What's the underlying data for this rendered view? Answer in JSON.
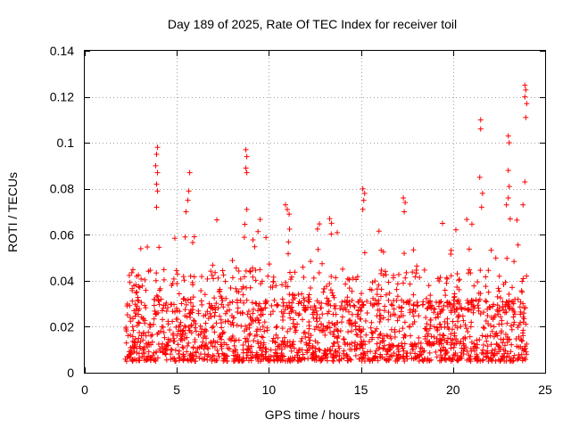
{
  "chart_data": {
    "type": "scatter",
    "title": "Day 189 of 2025, Rate Of TEC Index for receiver toil",
    "xlabel": "GPS time / hours",
    "ylabel": "ROTI / TECUs",
    "xlim": [
      0,
      25
    ],
    "ylim": [
      0,
      0.14
    ],
    "x_ticks": [
      0,
      5,
      10,
      15,
      20,
      25
    ],
    "x_tick_labels": [
      "0",
      "5",
      "10",
      "15",
      "20",
      "25"
    ],
    "y_ticks": [
      0,
      0.02,
      0.04,
      0.06,
      0.08,
      0.1,
      0.12,
      0.14
    ],
    "y_tick_labels": [
      "0",
      "0.02",
      "0.04",
      "0.06",
      "0.08",
      "0.1",
      "0.12",
      "0.14"
    ],
    "grid": true,
    "marker": "plus",
    "colors": {
      "points": "#ff0000",
      "grid": "#a0a0a0",
      "axes": "#000000"
    },
    "series": [
      {
        "name": "ROTI",
        "x_range": [
          2.2,
          24.0
        ],
        "typical_range": [
          0.005,
          0.045
        ],
        "notable_points": [
          [
            3.95,
            0.098
          ],
          [
            3.9,
            0.095
          ],
          [
            3.85,
            0.09
          ],
          [
            3.95,
            0.087
          ],
          [
            3.9,
            0.082
          ],
          [
            3.95,
            0.079
          ],
          [
            3.9,
            0.072
          ],
          [
            5.7,
            0.087
          ],
          [
            5.65,
            0.079
          ],
          [
            5.6,
            0.075
          ],
          [
            5.5,
            0.07
          ],
          [
            8.75,
            0.097
          ],
          [
            8.8,
            0.094
          ],
          [
            8.75,
            0.089
          ],
          [
            8.8,
            0.087
          ],
          [
            8.8,
            0.071
          ],
          [
            10.9,
            0.073
          ],
          [
            11.0,
            0.071
          ],
          [
            11.1,
            0.069
          ],
          [
            13.3,
            0.067
          ],
          [
            13.4,
            0.065
          ],
          [
            15.1,
            0.08
          ],
          [
            15.2,
            0.078
          ],
          [
            15.15,
            0.075
          ],
          [
            15.1,
            0.071
          ],
          [
            17.3,
            0.076
          ],
          [
            17.4,
            0.074
          ],
          [
            17.35,
            0.07
          ],
          [
            21.5,
            0.11
          ],
          [
            21.5,
            0.106
          ],
          [
            21.45,
            0.085
          ],
          [
            21.6,
            0.078
          ],
          [
            21.55,
            0.072
          ],
          [
            23.0,
            0.103
          ],
          [
            23.05,
            0.1
          ],
          [
            23.0,
            0.088
          ],
          [
            23.05,
            0.081
          ],
          [
            23.0,
            0.076
          ],
          [
            22.9,
            0.073
          ],
          [
            23.9,
            0.125
          ],
          [
            23.95,
            0.123
          ],
          [
            23.9,
            0.12
          ],
          [
            24.0,
            0.117
          ],
          [
            23.95,
            0.111
          ],
          [
            23.9,
            0.083
          ],
          [
            23.8,
            0.073
          ]
        ]
      }
    ]
  }
}
